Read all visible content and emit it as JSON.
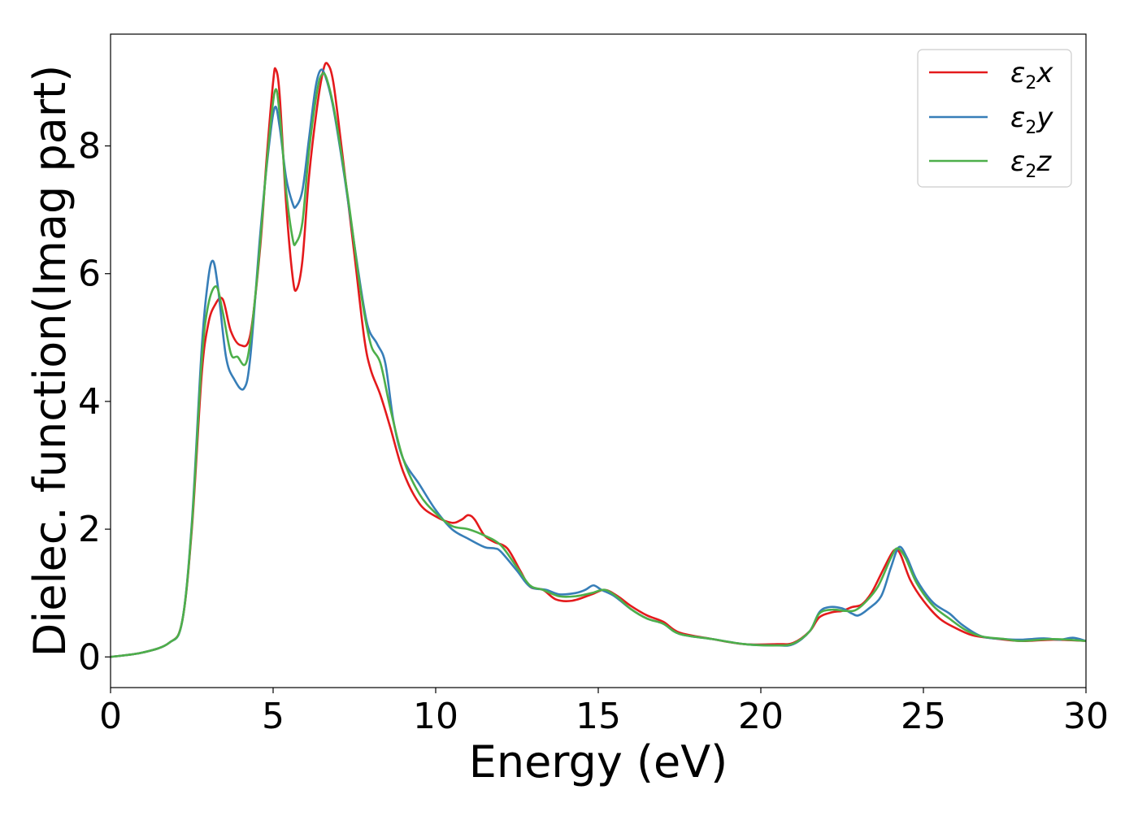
{
  "chart_data": {
    "type": "line",
    "xlabel": "Energy (eV)",
    "ylabel": "Dielec. function(Imag part)",
    "xlim": [
      0,
      30
    ],
    "ylim": [
      -0.48,
      9.75
    ],
    "x_ticks": [
      0,
      5,
      10,
      15,
      20,
      25,
      30
    ],
    "y_ticks": [
      0,
      2,
      4,
      6,
      8
    ],
    "grid": false,
    "legend_position": "upper right",
    "legend_entries": [
      {
        "symbol": "ε",
        "sub": "2",
        "var": "x",
        "color": "#e41a1c"
      },
      {
        "symbol": "ε",
        "sub": "2",
        "var": "y",
        "color": "#377eb8"
      },
      {
        "symbol": "ε",
        "sub": "2",
        "var": "z",
        "color": "#4daf4a"
      }
    ],
    "series": [
      {
        "color": "#e41a1c",
        "points": [
          [
            0,
            0.0
          ],
          [
            1.0,
            0.07
          ],
          [
            1.8,
            0.22
          ],
          [
            2.2,
            0.55
          ],
          [
            2.5,
            2.0
          ],
          [
            2.8,
            4.4
          ],
          [
            3.0,
            5.2
          ],
          [
            3.2,
            5.5
          ],
          [
            3.45,
            5.6
          ],
          [
            3.7,
            5.1
          ],
          [
            4.0,
            4.88
          ],
          [
            4.3,
            5.05
          ],
          [
            4.6,
            6.4
          ],
          [
            4.8,
            7.8
          ],
          [
            5.0,
            9.0
          ],
          [
            5.08,
            9.2
          ],
          [
            5.2,
            8.8
          ],
          [
            5.4,
            7.1
          ],
          [
            5.6,
            5.95
          ],
          [
            5.72,
            5.75
          ],
          [
            5.9,
            6.2
          ],
          [
            6.1,
            7.5
          ],
          [
            6.35,
            8.6
          ],
          [
            6.55,
            9.2
          ],
          [
            6.68,
            9.28
          ],
          [
            6.85,
            9.0
          ],
          [
            7.1,
            8.0
          ],
          [
            7.5,
            6.3
          ],
          [
            7.8,
            5.0
          ],
          [
            8.0,
            4.5
          ],
          [
            8.3,
            4.1
          ],
          [
            8.6,
            3.6
          ],
          [
            9.0,
            2.9
          ],
          [
            9.5,
            2.4
          ],
          [
            10.0,
            2.2
          ],
          [
            10.5,
            2.1
          ],
          [
            10.8,
            2.15
          ],
          [
            11.0,
            2.22
          ],
          [
            11.2,
            2.15
          ],
          [
            11.5,
            1.9
          ],
          [
            11.8,
            1.8
          ],
          [
            12.2,
            1.7
          ],
          [
            12.6,
            1.35
          ],
          [
            12.9,
            1.1
          ],
          [
            13.3,
            1.05
          ],
          [
            13.7,
            0.9
          ],
          [
            14.2,
            0.88
          ],
          [
            14.8,
            0.98
          ],
          [
            15.2,
            1.05
          ],
          [
            15.6,
            0.95
          ],
          [
            16.0,
            0.8
          ],
          [
            16.5,
            0.65
          ],
          [
            17.0,
            0.55
          ],
          [
            17.5,
            0.38
          ],
          [
            18.5,
            0.28
          ],
          [
            19.5,
            0.2
          ],
          [
            20.5,
            0.2
          ],
          [
            21.0,
            0.22
          ],
          [
            21.5,
            0.4
          ],
          [
            21.8,
            0.62
          ],
          [
            22.2,
            0.7
          ],
          [
            22.5,
            0.72
          ],
          [
            22.8,
            0.78
          ],
          [
            23.1,
            0.82
          ],
          [
            23.4,
            1.0
          ],
          [
            23.7,
            1.3
          ],
          [
            24.0,
            1.6
          ],
          [
            24.15,
            1.68
          ],
          [
            24.3,
            1.6
          ],
          [
            24.6,
            1.2
          ],
          [
            25.0,
            0.88
          ],
          [
            25.5,
            0.6
          ],
          [
            26.0,
            0.45
          ],
          [
            26.5,
            0.34
          ],
          [
            27.0,
            0.3
          ],
          [
            28.0,
            0.25
          ],
          [
            29.0,
            0.27
          ],
          [
            30.0,
            0.25
          ]
        ]
      },
      {
        "color": "#377eb8",
        "points": [
          [
            0,
            0.0
          ],
          [
            1.0,
            0.07
          ],
          [
            1.8,
            0.22
          ],
          [
            2.2,
            0.55
          ],
          [
            2.5,
            2.1
          ],
          [
            2.8,
            4.8
          ],
          [
            3.0,
            5.9
          ],
          [
            3.15,
            6.2
          ],
          [
            3.3,
            5.8
          ],
          [
            3.55,
            4.7
          ],
          [
            3.8,
            4.35
          ],
          [
            4.1,
            4.2
          ],
          [
            4.3,
            4.7
          ],
          [
            4.6,
            6.6
          ],
          [
            4.85,
            7.9
          ],
          [
            5.05,
            8.6
          ],
          [
            5.2,
            8.3
          ],
          [
            5.4,
            7.5
          ],
          [
            5.6,
            7.1
          ],
          [
            5.7,
            7.05
          ],
          [
            5.9,
            7.3
          ],
          [
            6.1,
            8.1
          ],
          [
            6.3,
            8.9
          ],
          [
            6.45,
            9.18
          ],
          [
            6.6,
            9.1
          ],
          [
            6.85,
            8.6
          ],
          [
            7.2,
            7.5
          ],
          [
            7.6,
            6.1
          ],
          [
            7.9,
            5.2
          ],
          [
            8.2,
            4.9
          ],
          [
            8.45,
            4.6
          ],
          [
            8.7,
            3.7
          ],
          [
            9.0,
            3.1
          ],
          [
            9.5,
            2.7
          ],
          [
            10.0,
            2.3
          ],
          [
            10.5,
            2.0
          ],
          [
            11.0,
            1.85
          ],
          [
            11.5,
            1.72
          ],
          [
            11.8,
            1.7
          ],
          [
            12.0,
            1.65
          ],
          [
            12.5,
            1.35
          ],
          [
            12.9,
            1.1
          ],
          [
            13.4,
            1.05
          ],
          [
            13.8,
            0.98
          ],
          [
            14.3,
            1.0
          ],
          [
            14.6,
            1.05
          ],
          [
            14.85,
            1.12
          ],
          [
            15.1,
            1.05
          ],
          [
            15.5,
            0.95
          ],
          [
            16.0,
            0.75
          ],
          [
            16.5,
            0.6
          ],
          [
            17.0,
            0.52
          ],
          [
            17.5,
            0.36
          ],
          [
            18.5,
            0.28
          ],
          [
            19.5,
            0.2
          ],
          [
            20.5,
            0.18
          ],
          [
            21.0,
            0.2
          ],
          [
            21.5,
            0.4
          ],
          [
            21.8,
            0.7
          ],
          [
            22.1,
            0.78
          ],
          [
            22.5,
            0.76
          ],
          [
            22.8,
            0.68
          ],
          [
            23.0,
            0.65
          ],
          [
            23.3,
            0.75
          ],
          [
            23.7,
            0.95
          ],
          [
            24.0,
            1.4
          ],
          [
            24.25,
            1.72
          ],
          [
            24.5,
            1.55
          ],
          [
            24.8,
            1.2
          ],
          [
            25.3,
            0.85
          ],
          [
            25.8,
            0.68
          ],
          [
            26.2,
            0.5
          ],
          [
            26.8,
            0.32
          ],
          [
            27.5,
            0.28
          ],
          [
            28.0,
            0.27
          ],
          [
            28.7,
            0.29
          ],
          [
            29.2,
            0.27
          ],
          [
            29.6,
            0.3
          ],
          [
            30.0,
            0.25
          ]
        ]
      },
      {
        "color": "#4daf4a",
        "points": [
          [
            0,
            0.0
          ],
          [
            1.0,
            0.07
          ],
          [
            1.8,
            0.22
          ],
          [
            2.2,
            0.55
          ],
          [
            2.5,
            2.05
          ],
          [
            2.8,
            4.6
          ],
          [
            3.0,
            5.5
          ],
          [
            3.25,
            5.8
          ],
          [
            3.45,
            5.4
          ],
          [
            3.7,
            4.75
          ],
          [
            3.9,
            4.7
          ],
          [
            4.2,
            4.65
          ],
          [
            4.5,
            5.9
          ],
          [
            4.8,
            7.7
          ],
          [
            5.05,
            8.85
          ],
          [
            5.2,
            8.5
          ],
          [
            5.4,
            7.3
          ],
          [
            5.6,
            6.55
          ],
          [
            5.7,
            6.48
          ],
          [
            5.9,
            6.8
          ],
          [
            6.1,
            7.9
          ],
          [
            6.35,
            8.85
          ],
          [
            6.5,
            9.12
          ],
          [
            6.65,
            9.05
          ],
          [
            6.9,
            8.5
          ],
          [
            7.3,
            7.2
          ],
          [
            7.7,
            5.7
          ],
          [
            8.0,
            4.9
          ],
          [
            8.3,
            4.6
          ],
          [
            8.6,
            3.9
          ],
          [
            9.0,
            3.1
          ],
          [
            9.5,
            2.55
          ],
          [
            10.0,
            2.25
          ],
          [
            10.5,
            2.05
          ],
          [
            11.0,
            2.0
          ],
          [
            11.5,
            1.9
          ],
          [
            12.0,
            1.75
          ],
          [
            12.5,
            1.4
          ],
          [
            12.9,
            1.12
          ],
          [
            13.3,
            1.05
          ],
          [
            13.8,
            0.95
          ],
          [
            14.3,
            0.95
          ],
          [
            14.8,
            1.0
          ],
          [
            15.2,
            1.05
          ],
          [
            15.6,
            0.93
          ],
          [
            16.0,
            0.75
          ],
          [
            16.5,
            0.6
          ],
          [
            17.0,
            0.52
          ],
          [
            17.5,
            0.36
          ],
          [
            18.5,
            0.28
          ],
          [
            19.5,
            0.2
          ],
          [
            20.5,
            0.18
          ],
          [
            21.0,
            0.21
          ],
          [
            21.5,
            0.4
          ],
          [
            21.8,
            0.68
          ],
          [
            22.2,
            0.74
          ],
          [
            22.6,
            0.72
          ],
          [
            22.9,
            0.73
          ],
          [
            23.2,
            0.85
          ],
          [
            23.6,
            1.1
          ],
          [
            24.0,
            1.55
          ],
          [
            24.2,
            1.7
          ],
          [
            24.45,
            1.55
          ],
          [
            24.8,
            1.15
          ],
          [
            25.3,
            0.8
          ],
          [
            25.8,
            0.6
          ],
          [
            26.3,
            0.42
          ],
          [
            26.8,
            0.32
          ],
          [
            27.5,
            0.28
          ],
          [
            28.0,
            0.25
          ],
          [
            29.0,
            0.28
          ],
          [
            30.0,
            0.25
          ]
        ]
      }
    ]
  }
}
